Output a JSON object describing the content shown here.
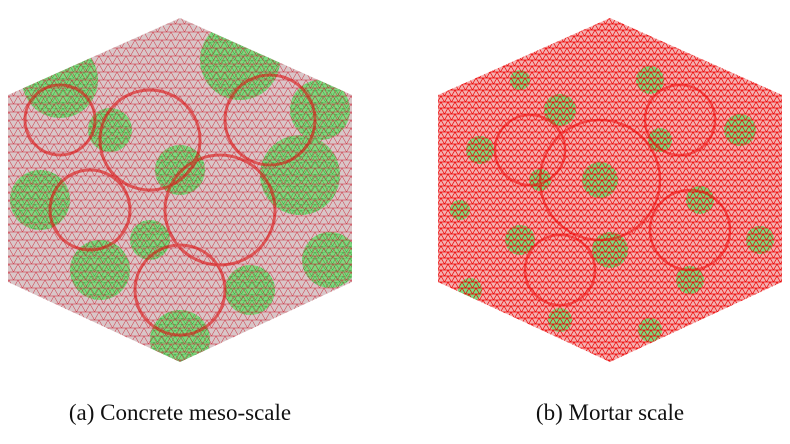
{
  "figure": {
    "panels": [
      {
        "caption": "(a) Concrete meso-scale"
      },
      {
        "caption": "(b) Mortar scale"
      }
    ]
  }
}
